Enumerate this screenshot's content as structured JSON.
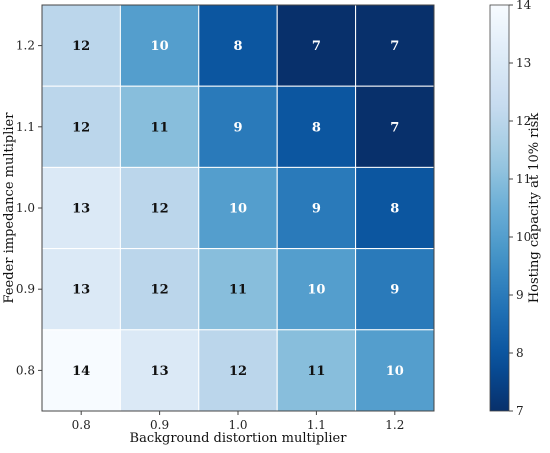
{
  "chart_data": {
    "type": "heatmap",
    "title": "",
    "xlabel": "Background distortion multiplier",
    "ylabel": "Feeder impedance multiplier",
    "x_categories": [
      "0.8",
      "0.9",
      "1.0",
      "1.1",
      "1.2"
    ],
    "y_categories": [
      "1.2",
      "1.1",
      "1.0",
      "0.9",
      "0.8"
    ],
    "values": [
      [
        12,
        10,
        8,
        7,
        7
      ],
      [
        12,
        11,
        9,
        8,
        7
      ],
      [
        13,
        12,
        10,
        9,
        8
      ],
      [
        13,
        12,
        11,
        10,
        9
      ],
      [
        14,
        13,
        12,
        11,
        10
      ]
    ],
    "colorbar": {
      "label": "Hosting capacity at 10% risk",
      "min": 7,
      "max": 14,
      "ticks": [
        "7",
        "8",
        "9",
        "10",
        "11",
        "12",
        "13",
        "14"
      ]
    },
    "colors": {
      "scale": [
        "#f7fbff",
        "#deebf7",
        "#c6dbef",
        "#9ecae1",
        "#6baed6",
        "#4292c6",
        "#2171b5",
        "#08519c",
        "#08306b"
      ],
      "dark_text": "#111111",
      "light_text": "#ffffff",
      "grid": "#ffffff",
      "frame": "#444444"
    }
  }
}
